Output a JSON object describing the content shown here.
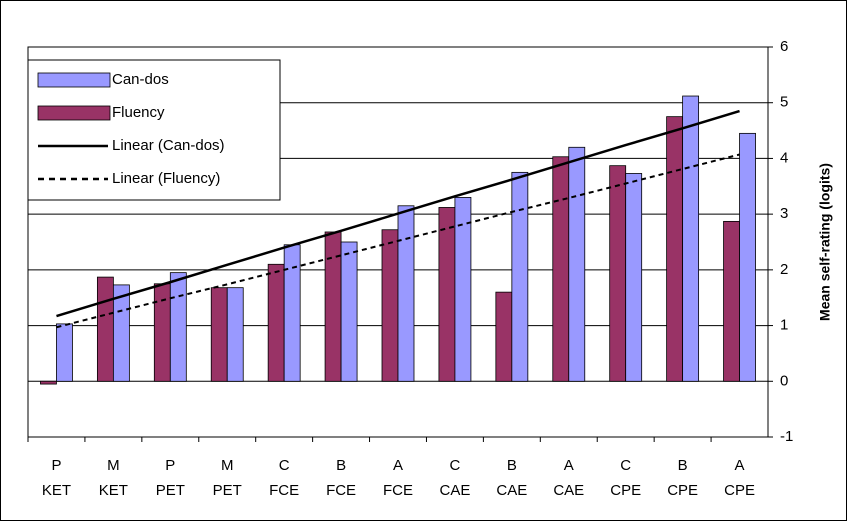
{
  "chart_data": {
    "type": "bar",
    "y_label": "Mean self-rating (logits)",
    "categories": [
      [
        "P",
        "KET"
      ],
      [
        "M",
        "KET"
      ],
      [
        "P",
        "PET"
      ],
      [
        "M",
        "PET"
      ],
      [
        "C",
        "FCE"
      ],
      [
        "B",
        "FCE"
      ],
      [
        "A",
        "FCE"
      ],
      [
        "C",
        "CAE"
      ],
      [
        "B",
        "CAE"
      ],
      [
        "A",
        "CAE"
      ],
      [
        "C",
        "CPE"
      ],
      [
        "B",
        "CPE"
      ],
      [
        "A",
        "CPE"
      ]
    ],
    "series": [
      {
        "name": "Can-dos",
        "color": "#9999ff",
        "values": [
          1.03,
          1.73,
          1.95,
          1.68,
          2.45,
          2.5,
          3.15,
          3.3,
          3.75,
          4.2,
          3.73,
          5.12,
          4.45
        ]
      },
      {
        "name": "Fluency",
        "color": "#993366",
        "values": [
          -0.05,
          1.87,
          1.75,
          1.68,
          2.1,
          2.68,
          2.72,
          3.12,
          1.6,
          4.03,
          3.87,
          4.75,
          2.87
        ]
      },
      {
        "name": "Linear (Can-dos)",
        "type": "line",
        "color": "#000000",
        "dash": false,
        "values": [
          1.17,
          1.48,
          1.78,
          2.09,
          2.4,
          2.7,
          3.01,
          3.32,
          3.62,
          3.93,
          4.24,
          4.54,
          4.85
        ]
      },
      {
        "name": "Linear (Fluency)",
        "type": "line",
        "color": "#000000",
        "dash": true,
        "values": [
          0.97,
          1.23,
          1.49,
          1.74,
          2.0,
          2.26,
          2.52,
          2.78,
          3.04,
          3.29,
          3.55,
          3.81,
          4.07
        ]
      }
    ],
    "ylim": [
      -1,
      6
    ],
    "yticks": [
      -1,
      0,
      1,
      2,
      3,
      4,
      5,
      6
    ],
    "grid": true,
    "legend": "upper-left"
  }
}
